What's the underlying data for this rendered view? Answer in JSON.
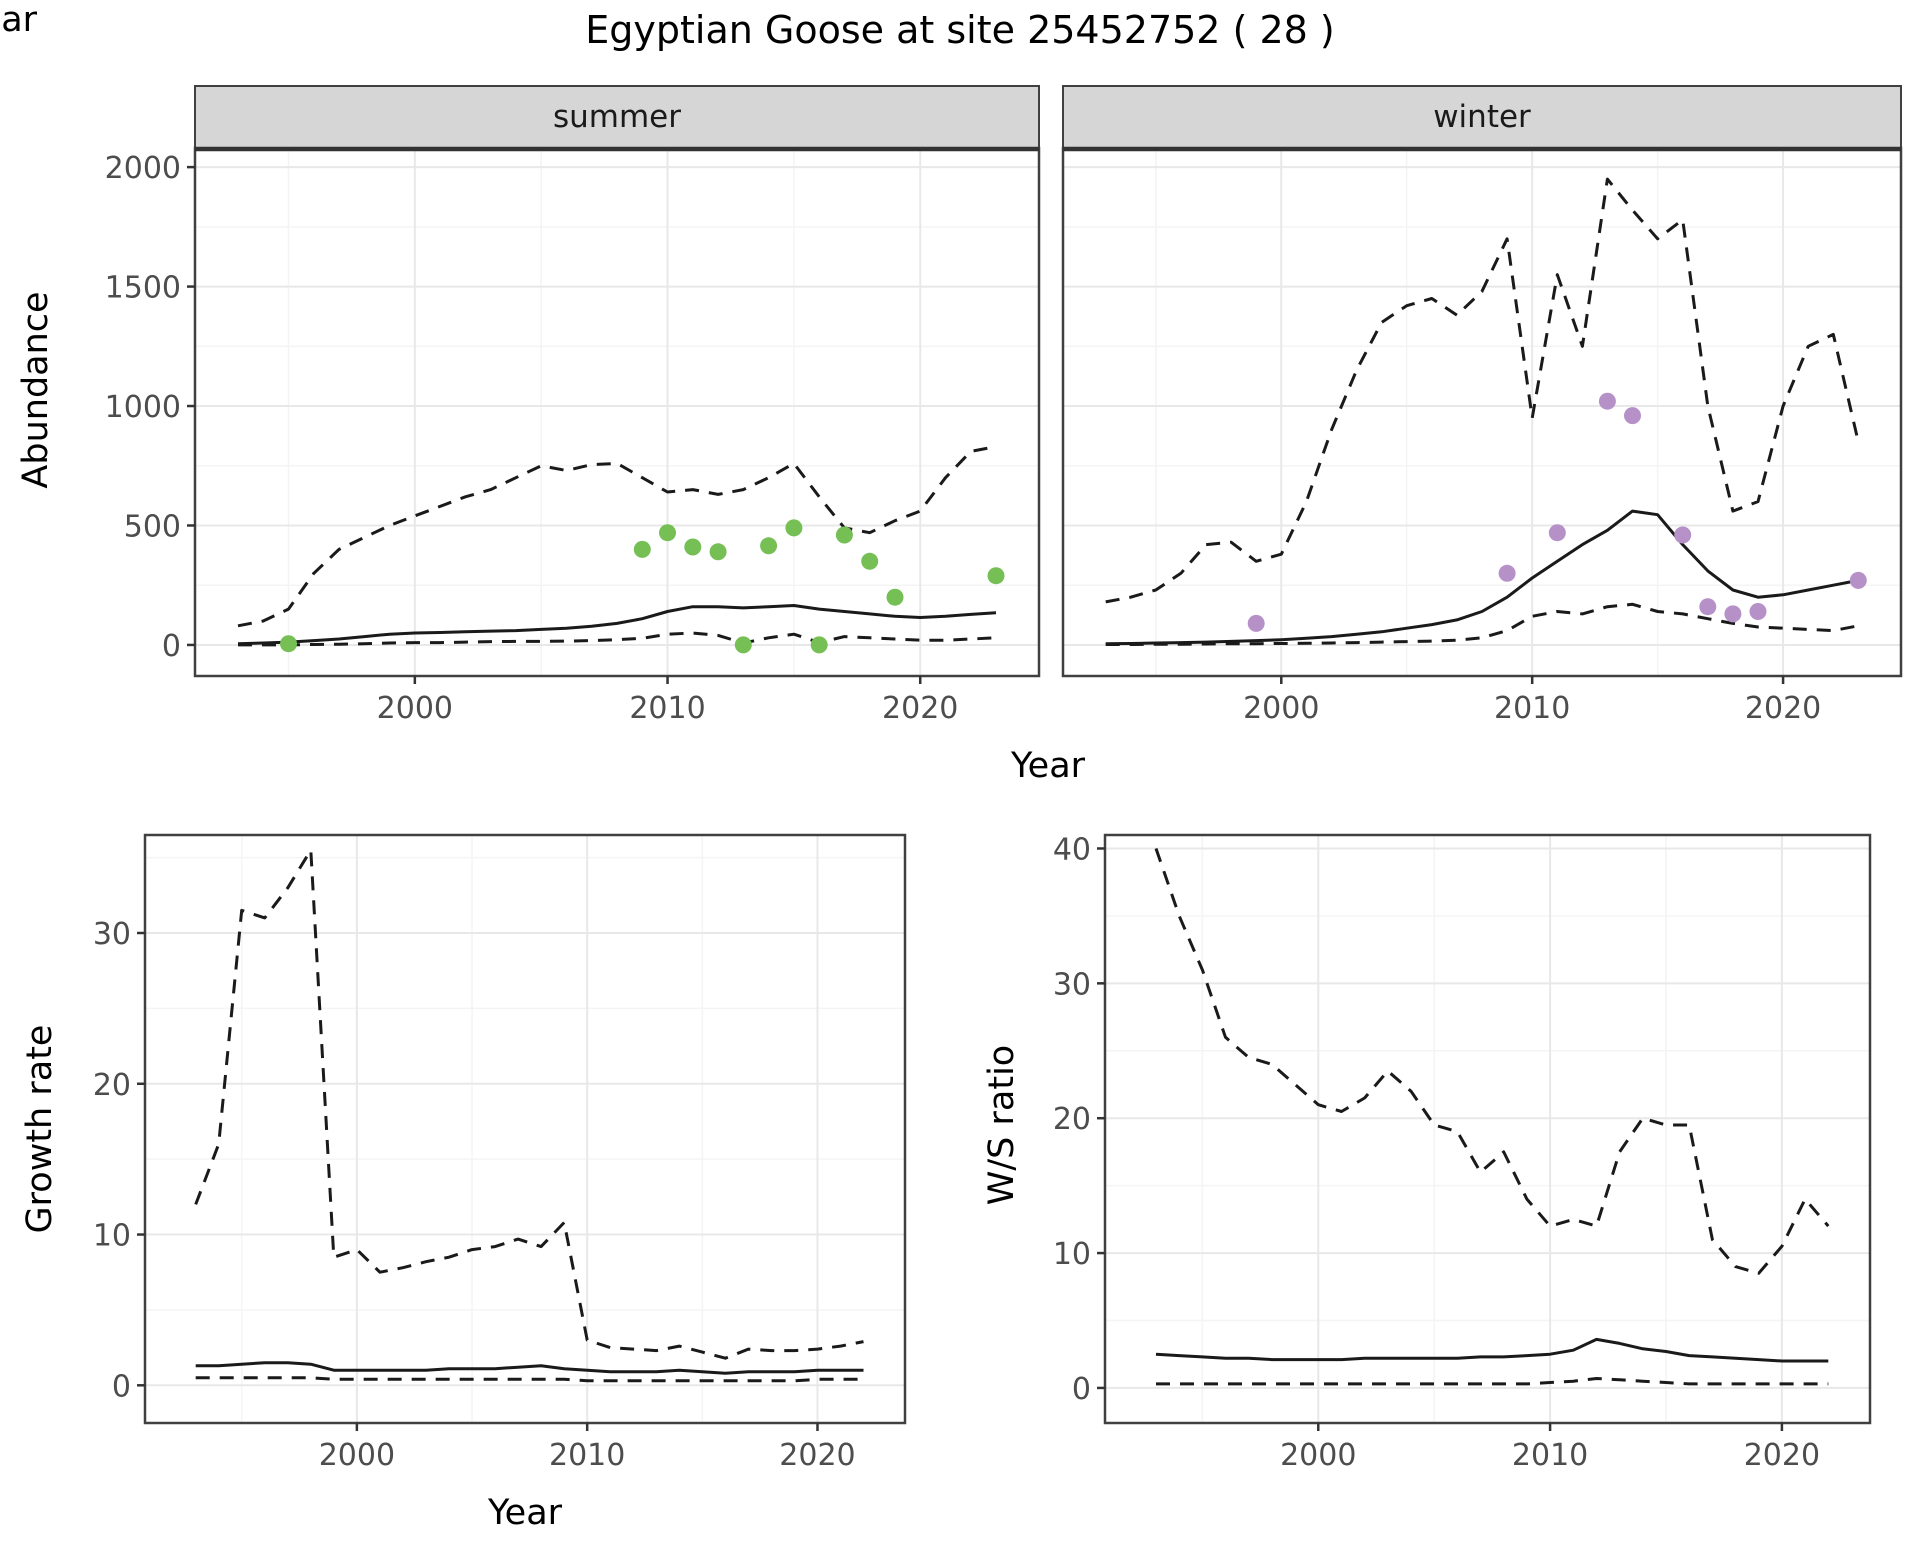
{
  "title": "Egyptian Goose at site 25452752 ( 28 )",
  "colors": {
    "line": "#1a1a1a",
    "grid_major": "#e8e8e8",
    "grid_minor": "#f4f4f4",
    "strip_bg": "#d6d6d6",
    "strip_text": "#1a1a1a",
    "tick_text": "#4d4d4d",
    "panel_border": "#404040",
    "summer_points": "#75bf55",
    "winter_points": "#b591c8"
  },
  "chart_data": [
    {
      "type": "line",
      "facet_label": "summer",
      "xlabel": "Year",
      "ylabel": "Abundance",
      "xlim": [
        1991.3,
        2024.7
      ],
      "ylim": [
        -130,
        2080
      ],
      "xticks": [
        2000,
        2010,
        2020
      ],
      "yticks": [
        0,
        500,
        1000,
        1500,
        2000
      ],
      "x": [
        1993,
        1994,
        1995,
        1996,
        1997,
        1998,
        1999,
        2000,
        2001,
        2002,
        2003,
        2004,
        2005,
        2006,
        2007,
        2008,
        2009,
        2010,
        2011,
        2012,
        2013,
        2014,
        2015,
        2016,
        2017,
        2018,
        2019,
        2020,
        2021,
        2022,
        2023
      ],
      "series": [
        {
          "name": "upper_95pct",
          "style": "dashed",
          "values": [
            80,
            100,
            150,
            300,
            400,
            450,
            500,
            540,
            580,
            620,
            650,
            700,
            750,
            730,
            755,
            760,
            700,
            640,
            650,
            630,
            650,
            700,
            760,
            620,
            490,
            470,
            520,
            560,
            700,
            810,
            830
          ]
        },
        {
          "name": "fitted_index",
          "style": "solid",
          "values": [
            5,
            8,
            12,
            18,
            25,
            35,
            45,
            50,
            52,
            55,
            58,
            60,
            65,
            70,
            78,
            90,
            110,
            140,
            160,
            160,
            155,
            160,
            165,
            150,
            140,
            130,
            120,
            115,
            120,
            128,
            135
          ]
        },
        {
          "name": "lower_95pct",
          "style": "dashed",
          "values": [
            0,
            0,
            0,
            2,
            3,
            5,
            8,
            10,
            10,
            12,
            14,
            15,
            15,
            16,
            18,
            22,
            28,
            45,
            50,
            40,
            8,
            30,
            45,
            10,
            35,
            30,
            25,
            20,
            20,
            25,
            30
          ]
        }
      ],
      "points": {
        "name": "observed_count",
        "color": "#75bf55",
        "x": [
          1995,
          2009,
          2010,
          2011,
          2012,
          2013,
          2014,
          2015,
          2016,
          2017,
          2018,
          2019,
          2023
        ],
        "y": [
          5,
          400,
          470,
          410,
          390,
          0,
          415,
          490,
          0,
          460,
          350,
          200,
          290
        ]
      }
    },
    {
      "type": "line",
      "facet_label": "winter",
      "xlabel": "Year",
      "ylabel": "Abundance",
      "xlim": [
        1991.3,
        2024.7
      ],
      "ylim": [
        -130,
        2080
      ],
      "xticks": [
        2000,
        2010,
        2020
      ],
      "yticks": [
        0,
        500,
        1000,
        1500,
        2000
      ],
      "x": [
        1993,
        1994,
        1995,
        1996,
        1997,
        1998,
        1999,
        2000,
        2001,
        2002,
        2003,
        2004,
        2005,
        2006,
        2007,
        2008,
        2009,
        2010,
        2011,
        2012,
        2013,
        2014,
        2015,
        2016,
        2017,
        2018,
        2019,
        2020,
        2021,
        2022,
        2023
      ],
      "series": [
        {
          "name": "upper_95pct",
          "style": "dashed",
          "values": [
            180,
            200,
            230,
            300,
            420,
            430,
            350,
            380,
            600,
            900,
            1150,
            1350,
            1420,
            1450,
            1380,
            1480,
            1700,
            950,
            1550,
            1250,
            1950,
            1820,
            1700,
            1780,
            1000,
            560,
            600,
            1000,
            1250,
            1300,
            850
          ]
        },
        {
          "name": "fitted_index",
          "style": "solid",
          "values": [
            5,
            6,
            8,
            10,
            12,
            15,
            18,
            22,
            28,
            35,
            45,
            55,
            70,
            85,
            105,
            140,
            200,
            280,
            350,
            420,
            480,
            560,
            545,
            420,
            310,
            230,
            200,
            210,
            230,
            250,
            270
          ]
        },
        {
          "name": "lower_95pct",
          "style": "dashed",
          "values": [
            2,
            2,
            3,
            3,
            4,
            5,
            5,
            6,
            7,
            8,
            10,
            12,
            14,
            16,
            20,
            30,
            60,
            120,
            140,
            130,
            160,
            170,
            140,
            130,
            110,
            90,
            75,
            70,
            65,
            60,
            80
          ]
        }
      ],
      "points": {
        "name": "observed_count",
        "color": "#b591c8",
        "x": [
          1999,
          2009,
          2011,
          2013,
          2014,
          2016,
          2017,
          2018,
          2019,
          2023
        ],
        "y": [
          90,
          300,
          470,
          1020,
          960,
          460,
          160,
          130,
          140,
          270
        ]
      }
    },
    {
      "type": "line",
      "facet_label": "",
      "xlabel": "Year",
      "ylabel": "Growth rate",
      "xlim": [
        1990.8,
        2023.8
      ],
      "ylim": [
        -2.5,
        36.5
      ],
      "xticks": [
        2000,
        2010,
        2020
      ],
      "yticks": [
        0,
        10,
        20,
        30
      ],
      "x": [
        1993,
        1994,
        1995,
        1996,
        1997,
        1998,
        1999,
        2000,
        2001,
        2002,
        2003,
        2004,
        2005,
        2006,
        2007,
        2008,
        2009,
        2010,
        2011,
        2012,
        2013,
        2014,
        2015,
        2016,
        2017,
        2018,
        2019,
        2020,
        2021,
        2022
      ],
      "series": [
        {
          "name": "upper_95pct",
          "style": "dashed",
          "values": [
            12,
            16,
            31.5,
            31,
            33,
            35.5,
            8.5,
            9,
            7.5,
            7.8,
            8.2,
            8.5,
            9,
            9.2,
            9.7,
            9.2,
            10.8,
            3,
            2.5,
            2.4,
            2.3,
            2.6,
            2.2,
            1.8,
            2.4,
            2.3,
            2.3,
            2.4,
            2.6,
            2.9
          ]
        },
        {
          "name": "fitted_growth_rate",
          "style": "solid",
          "values": [
            1.3,
            1.3,
            1.4,
            1.5,
            1.5,
            1.4,
            1.0,
            1.0,
            1.0,
            1.0,
            1.0,
            1.1,
            1.1,
            1.1,
            1.2,
            1.3,
            1.1,
            1.0,
            0.9,
            0.9,
            0.9,
            1.0,
            0.9,
            0.8,
            0.9,
            0.9,
            0.9,
            1.0,
            1.0,
            1.0
          ]
        },
        {
          "name": "lower_95pct",
          "style": "dashed",
          "values": [
            0.5,
            0.5,
            0.5,
            0.5,
            0.5,
            0.5,
            0.4,
            0.4,
            0.4,
            0.4,
            0.4,
            0.4,
            0.4,
            0.4,
            0.4,
            0.4,
            0.4,
            0.3,
            0.3,
            0.3,
            0.3,
            0.3,
            0.3,
            0.3,
            0.3,
            0.3,
            0.3,
            0.4,
            0.4,
            0.4
          ]
        }
      ]
    },
    {
      "type": "line",
      "facet_label": "",
      "xlabel": "Year",
      "ylabel": "W/S ratio",
      "xlim": [
        1990.8,
        2023.8
      ],
      "ylim": [
        -2.6,
        41
      ],
      "xticks": [
        2000,
        2010,
        2020
      ],
      "yticks": [
        0,
        10,
        20,
        30,
        40
      ],
      "x": [
        1993,
        1994,
        1995,
        1996,
        1997,
        1998,
        1999,
        2000,
        2001,
        2002,
        2003,
        2004,
        2005,
        2006,
        2007,
        2008,
        2009,
        2010,
        2011,
        2012,
        2013,
        2014,
        2015,
        2016,
        2017,
        2018,
        2019,
        2020,
        2021,
        2022
      ],
      "series": [
        {
          "name": "upper_95pct",
          "style": "dashed",
          "values": [
            40,
            35,
            31,
            26,
            24.5,
            24,
            22.5,
            21,
            20.5,
            21.5,
            23.5,
            22,
            19.5,
            19,
            16,
            17.5,
            14,
            12,
            12.5,
            12,
            17.5,
            20,
            19.5,
            19.5,
            11,
            9,
            8.5,
            10.5,
            14,
            12
          ]
        },
        {
          "name": "fitted_ws_ratio",
          "style": "solid",
          "values": [
            2.5,
            2.4,
            2.3,
            2.2,
            2.2,
            2.1,
            2.1,
            2.1,
            2.1,
            2.2,
            2.2,
            2.2,
            2.2,
            2.2,
            2.3,
            2.3,
            2.4,
            2.5,
            2.8,
            3.6,
            3.3,
            2.9,
            2.7,
            2.4,
            2.3,
            2.2,
            2.1,
            2.0,
            2.0,
            2.0
          ]
        },
        {
          "name": "lower_95pct",
          "style": "dashed",
          "values": [
            0.3,
            0.3,
            0.3,
            0.3,
            0.3,
            0.3,
            0.3,
            0.3,
            0.3,
            0.3,
            0.3,
            0.3,
            0.3,
            0.3,
            0.3,
            0.3,
            0.3,
            0.4,
            0.5,
            0.7,
            0.6,
            0.5,
            0.4,
            0.3,
            0.3,
            0.3,
            0.3,
            0.3,
            0.3,
            0.3
          ]
        }
      ]
    }
  ]
}
